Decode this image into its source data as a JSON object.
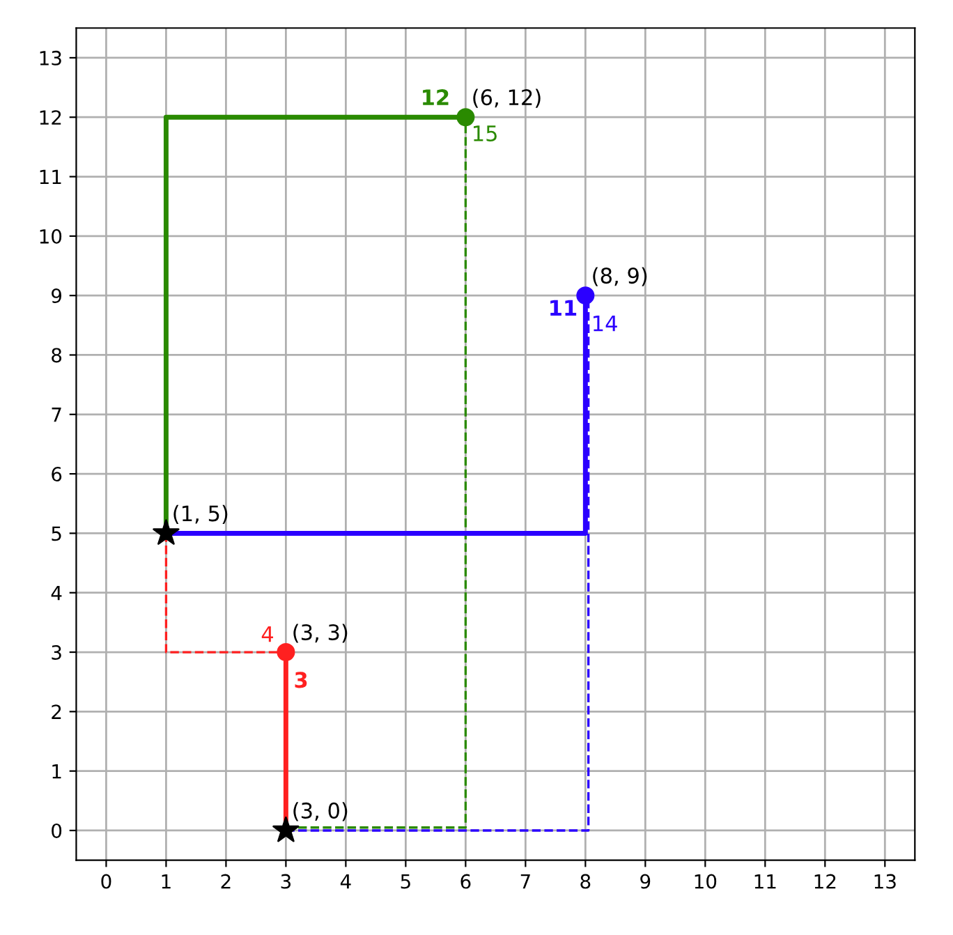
{
  "chart_data": {
    "type": "line",
    "xlim": [
      -0.5,
      13.5
    ],
    "ylim": [
      -0.5,
      13.5
    ],
    "xticks": [
      0,
      1,
      2,
      3,
      4,
      5,
      6,
      7,
      8,
      9,
      10,
      11,
      12,
      13
    ],
    "yticks": [
      0,
      1,
      2,
      3,
      4,
      5,
      6,
      7,
      8,
      9,
      10,
      11,
      12,
      13
    ],
    "grid": true,
    "legend": false,
    "series": [
      {
        "color": "#2a8a00",
        "line_style": "solid",
        "x": [
          1,
          1,
          6
        ],
        "values": [
          5,
          12,
          12
        ]
      },
      {
        "color": "#2a8a00",
        "line_style": "dashed",
        "x": [
          3,
          6,
          6
        ],
        "values": [
          0.05,
          0.05,
          12
        ]
      },
      {
        "color": "#2b00ff",
        "line_style": "solid",
        "x": [
          1,
          8,
          8
        ],
        "values": [
          5,
          5,
          9
        ]
      },
      {
        "color": "#2b00ff",
        "line_style": "dashed",
        "x": [
          3,
          8.05,
          8.05
        ],
        "values": [
          0,
          0,
          9
        ]
      },
      {
        "color": "#ff2020",
        "line_style": "solid",
        "x": [
          3,
          3
        ],
        "values": [
          0,
          3
        ]
      },
      {
        "color": "#ff2020",
        "line_style": "dashed",
        "x": [
          1,
          1,
          3
        ],
        "values": [
          5,
          3,
          3
        ]
      },
      {
        "type": "scatter",
        "marker": "circle",
        "x": [
          6,
          8,
          3
        ],
        "values": [
          12,
          9,
          3
        ],
        "colors": [
          "#2a8a00",
          "#2b00ff",
          "#ff2020"
        ]
      },
      {
        "type": "scatter",
        "marker": "star",
        "x": [
          1,
          3
        ],
        "values": [
          5,
          0
        ],
        "colors": [
          "#000000",
          "#000000"
        ]
      }
    ],
    "annotations": [
      {
        "text": "12",
        "x": 6,
        "y": 12
      },
      {
        "text": "15",
        "x": 6,
        "y": 12
      },
      {
        "text": "11",
        "x": 8,
        "y": 9
      },
      {
        "text": "14",
        "x": 8,
        "y": 9
      },
      {
        "text": "3",
        "x": 3,
        "y": 3
      },
      {
        "text": "4",
        "x": 3,
        "y": 3
      },
      {
        "text": "(6, 12)",
        "x": 6,
        "y": 12
      },
      {
        "text": "(8, 9)",
        "x": 8,
        "y": 9
      },
      {
        "text": "(3, 3)",
        "x": 3,
        "y": 3
      },
      {
        "text": "(1, 5)",
        "x": 1,
        "y": 5
      },
      {
        "text": "(3, 0)",
        "x": 3,
        "y": 0
      }
    ]
  }
}
